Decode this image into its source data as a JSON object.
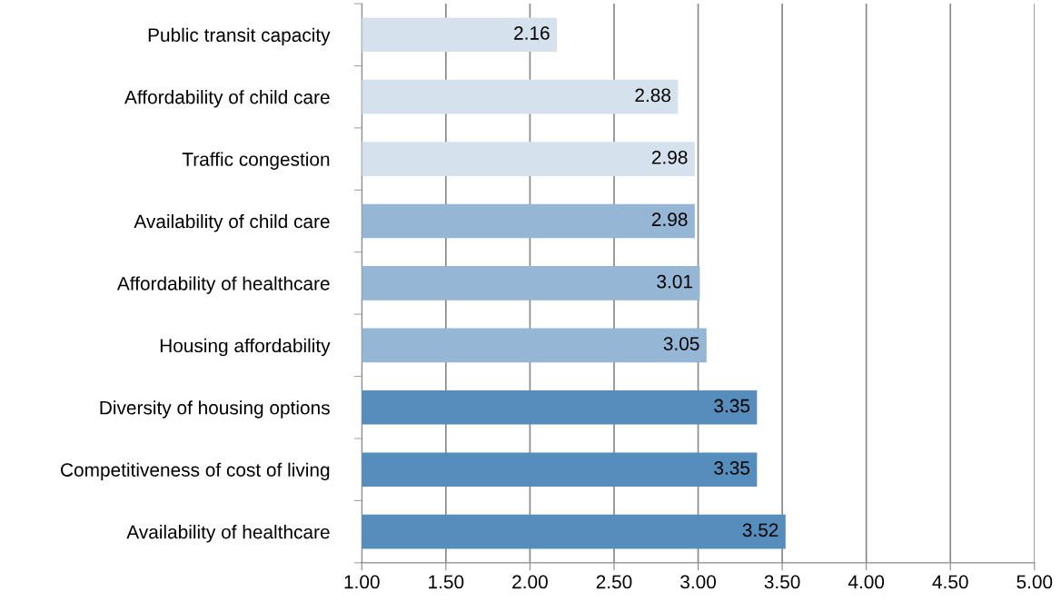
{
  "chart_data": {
    "type": "bar",
    "orientation": "horizontal",
    "categories": [
      "Public transit capacity",
      "Affordability of child care",
      "Traffic congestion",
      "Availability of child care",
      "Affordability of healthcare",
      "Housing affordability",
      "Diversity of housing options",
      "Competitiveness of cost of living",
      "Availability of healthcare"
    ],
    "values": [
      2.16,
      2.88,
      2.98,
      2.98,
      3.01,
      3.05,
      3.35,
      3.35,
      3.52
    ],
    "value_labels": [
      "2.16",
      "2.88",
      "2.98",
      "2.98",
      "3.01",
      "3.05",
      "3.35",
      "3.35",
      "3.52"
    ],
    "colors": [
      "#d5e2ed",
      "#d5e2ed",
      "#d5e2ed",
      "#95b6d4",
      "#95b6d4",
      "#95b6d4",
      "#558dbd",
      "#558dbd",
      "#558dbd"
    ],
    "xlim": [
      1,
      5
    ],
    "xticks": [
      {
        "value": 1,
        "label": "1.00"
      },
      {
        "value": 1.5,
        "label": "1.50"
      },
      {
        "value": 2,
        "label": "2.00"
      },
      {
        "value": 2.5,
        "label": "2.50"
      },
      {
        "value": 3,
        "label": "3.00"
      },
      {
        "value": 3.5,
        "label": "3.50"
      },
      {
        "value": 4,
        "label": "4.00"
      },
      {
        "value": 4.5,
        "label": "4.50"
      },
      {
        "value": 5,
        "label": "5.00"
      }
    ],
    "grid": "x",
    "legend": false
  }
}
